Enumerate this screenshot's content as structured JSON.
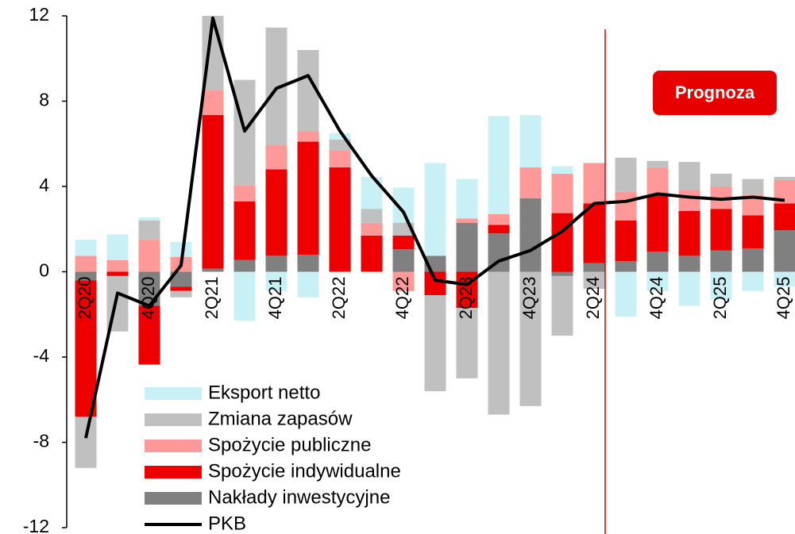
{
  "chart_data": {
    "type": "bar",
    "stacked": true,
    "annotation": "Prognoza",
    "categories": [
      "2Q20",
      null,
      "4Q20",
      null,
      "2Q21",
      null,
      "4Q21",
      null,
      "2Q22",
      null,
      "4Q22",
      null,
      "2Q23",
      null,
      "4Q23",
      null,
      "2Q24",
      null,
      "4Q24",
      null,
      "2Q25",
      null,
      "4Q25"
    ],
    "series": [
      {
        "name": "Eksport netto",
        "color": "#c9f0f5",
        "values": [
          0.75,
          1.2,
          0.15,
          0.7,
          0.5,
          -2.3,
          -0.9,
          -1.2,
          0.3,
          1.5,
          1.65,
          4.35,
          1.85,
          4.6,
          2.45,
          0.35,
          0,
          -2.1,
          -0.9,
          -1.6,
          -1.3,
          -0.9,
          -0.7
        ]
      },
      {
        "name": "Zmiana zapasów",
        "color": "#c0c0c0",
        "values": [
          -2.4,
          -2.6,
          0.9,
          -0.3,
          3.5,
          4.95,
          5.5,
          3.8,
          0.5,
          0.65,
          0.6,
          -4.5,
          -3.3,
          -6.7,
          -6.3,
          -2.8,
          -0.8,
          1.6,
          0.3,
          1.3,
          0.6,
          0.75,
          0.15
        ]
      },
      {
        "name": "Spożycie publiczne",
        "color": "#ff9999",
        "values": [
          0.75,
          0.55,
          1.5,
          0.7,
          1.15,
          0.75,
          1.15,
          0.5,
          0.8,
          0.6,
          -0.9,
          0,
          0.2,
          0.5,
          1.45,
          1.85,
          1.9,
          1.35,
          1.3,
          1.0,
          1.05,
          0.95,
          1.1
        ]
      },
      {
        "name": "Spożycie indywidualne",
        "color": "#ee0000",
        "values": [
          -6.4,
          -0.2,
          -2.75,
          -0.2,
          7.2,
          2.75,
          4.05,
          5.3,
          4.9,
          1.7,
          0.65,
          -1.1,
          -1.7,
          0.4,
          0,
          2.75,
          2.8,
          1.9,
          2.65,
          2.1,
          1.95,
          1.55,
          1.25
        ]
      },
      {
        "name": "Nakłady inwestycyjne",
        "color": "#808080",
        "values": [
          -0.4,
          0,
          -1.6,
          -0.7,
          0.15,
          0.55,
          0.75,
          0.8,
          0,
          0,
          1.05,
          0.75,
          2.3,
          1.8,
          3.45,
          -0.2,
          0.4,
          0.5,
          0.95,
          0.75,
          1.0,
          1.1,
          1.95
        ]
      },
      {
        "name": "PKB",
        "type": "line",
        "color": "#000000",
        "values": [
          -7.8,
          -1.0,
          -1.6,
          0.3,
          11.9,
          6.6,
          8.6,
          9.2,
          6.6,
          4.5,
          2.8,
          -0.4,
          -0.6,
          0.5,
          1.0,
          1.9,
          3.2,
          3.3,
          3.65,
          3.5,
          3.4,
          3.5,
          3.35
        ]
      }
    ],
    "ylim": [
      -12,
      12
    ],
    "yticks": [
      -12,
      -8,
      -4,
      0,
      4,
      8,
      12
    ],
    "legend": "lower left",
    "grid": false
  }
}
